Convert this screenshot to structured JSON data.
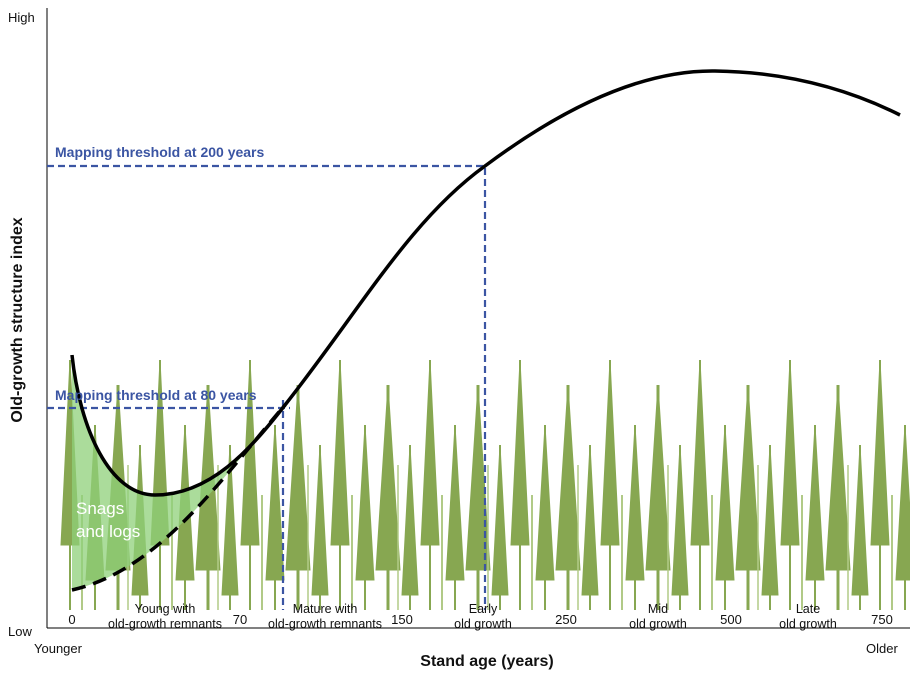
{
  "axis": {
    "y_high": "High",
    "y_low": "Low",
    "y_title": "Old-growth structure index",
    "x_title": "Stand age (years)",
    "x_left": "Younger",
    "x_right": "Older"
  },
  "thresholds": [
    {
      "label": "Mapping threshold at 200 years"
    },
    {
      "label": "Mapping threshold at 80 years"
    }
  ],
  "age_ticks": [
    "0",
    "70",
    "150",
    "250",
    "500",
    "750"
  ],
  "stages": [
    [
      "Young with",
      "old-growth remnants"
    ],
    [
      "Mature with",
      "old-growth remnants"
    ],
    [
      "Early",
      "old growth"
    ],
    [
      "Mid",
      "old growth"
    ],
    [
      "Late",
      "old growth"
    ]
  ],
  "annotation": [
    "Snags",
    "and logs"
  ]
}
